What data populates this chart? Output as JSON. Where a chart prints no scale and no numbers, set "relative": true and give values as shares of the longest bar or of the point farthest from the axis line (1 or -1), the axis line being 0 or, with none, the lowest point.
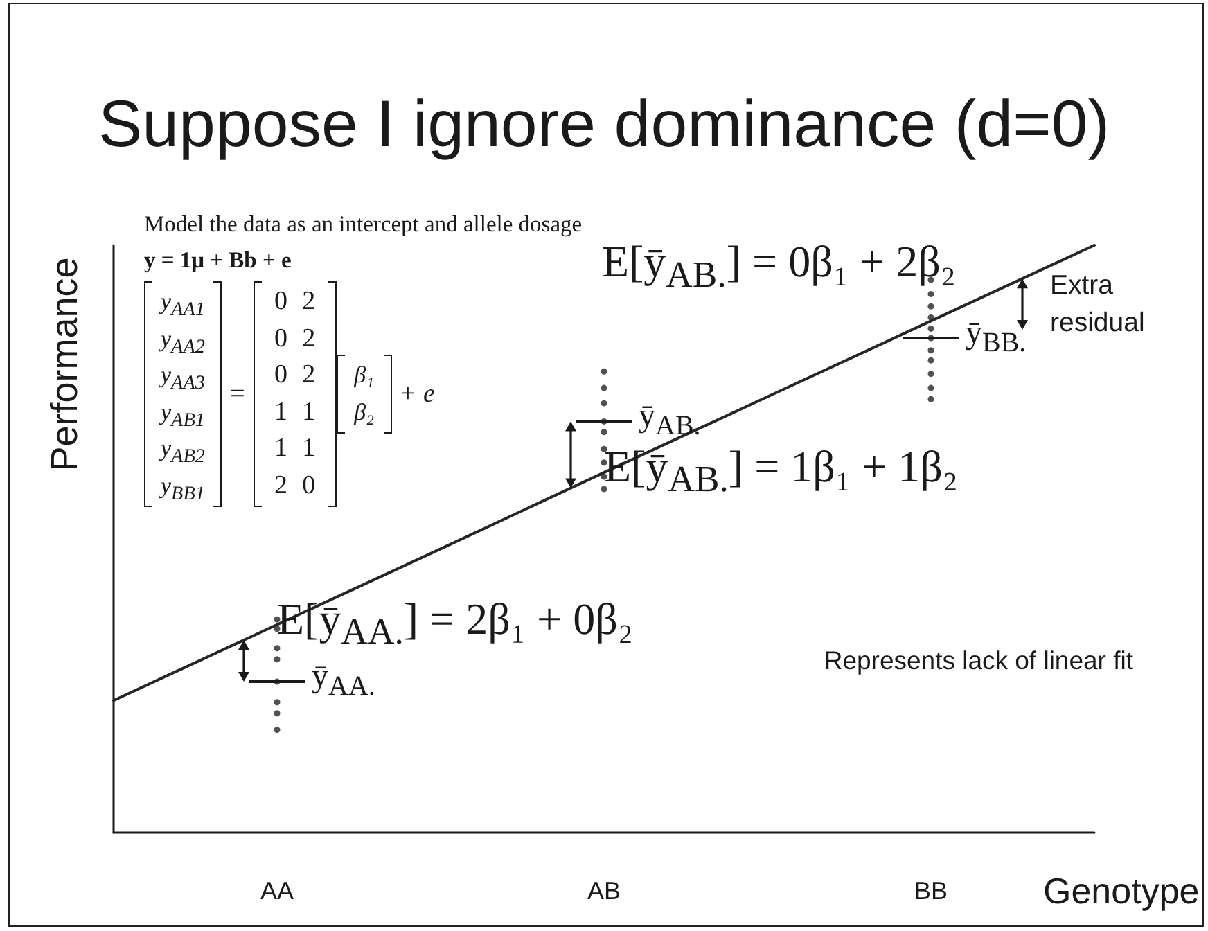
{
  "chart_data": {
    "type": "scatter",
    "title": "Suppose I ignore dominance (d=0)",
    "xlabel": "Genotype",
    "ylabel": "Performance",
    "relative": true,
    "categories": [
      null,
      "AA",
      null,
      "AB",
      null,
      "BB",
      null
    ],
    "series": [
      {
        "color": "#262626",
        "marker": "circle",
        "x": [
          "AA",
          "AA",
          "AA",
          "AA",
          "AA",
          "AA",
          "AA",
          "AA",
          "AB",
          "AB",
          "AB",
          "AB",
          "AB",
          "AB",
          "AB",
          "AB",
          "AB",
          "BB",
          "BB",
          "BB",
          "BB",
          "BB",
          "BB",
          "BB",
          "BB",
          "BB",
          "BB",
          "BB"
        ],
        "values": [
          0.363,
          0.347,
          0.314,
          0.295,
          0.257,
          0.222,
          0.203,
          0.175,
          0.785,
          0.757,
          0.731,
          0.7,
          0.682,
          0.653,
          0.63,
          0.606,
          0.585,
          0.941,
          0.917,
          0.896,
          0.877,
          0.858,
          0.842,
          0.821,
          0.804,
          0.781,
          0.757,
          0.738
        ]
      },
      {
        "type": "line",
        "color": "#262626",
        "marker": "none",
        "line_style": "solid",
        "values": [
          0.225,
          0.354,
          0.483,
          0.613,
          0.742,
          0.871,
          1
        ]
      }
    ],
    "annotations": [
      "Model the data as an intercept and allele dosage",
      "y = 1μ + Bb + e",
      "y$_{AA1}$\ny$_{AA2}$\ny$_{AA3}$\ny$_{AB1}$\ny$_{AB2}$\ny$_{BB1}$",
      "=",
      "0 2\n0 2\n0 2\n1 1\n1 1\n2 0",
      "β₁\nβ₂",
      "+ e",
      {
        "text": "E[ȳ$_{AA.}$] = 2β₁ + 0β₂",
        "x": "AA",
        "y": 0.354
      },
      {
        "text": "ȳ$_{AA.}$",
        "x": "AA",
        "y": 0.257
      },
      {
        "text": "E[ȳ$_{AB.}$] = 1β₁ + 1β₂",
        "x": "AB",
        "y": 0.613
      },
      {
        "text": "ȳ$_{AB.}$",
        "x": "AB",
        "y": 0.7
      },
      {
        "text": "E[ȳ$_{AB.}$] = 0β₁ + 2β₂",
        "x": "BB",
        "y": 0.871
      },
      {
        "text": "ȳ$_{BB.}$",
        "x": "BB",
        "y": 0.842
      },
      "Extra\nresidual",
      "Represents lack of linear fit"
    ]
  }
}
